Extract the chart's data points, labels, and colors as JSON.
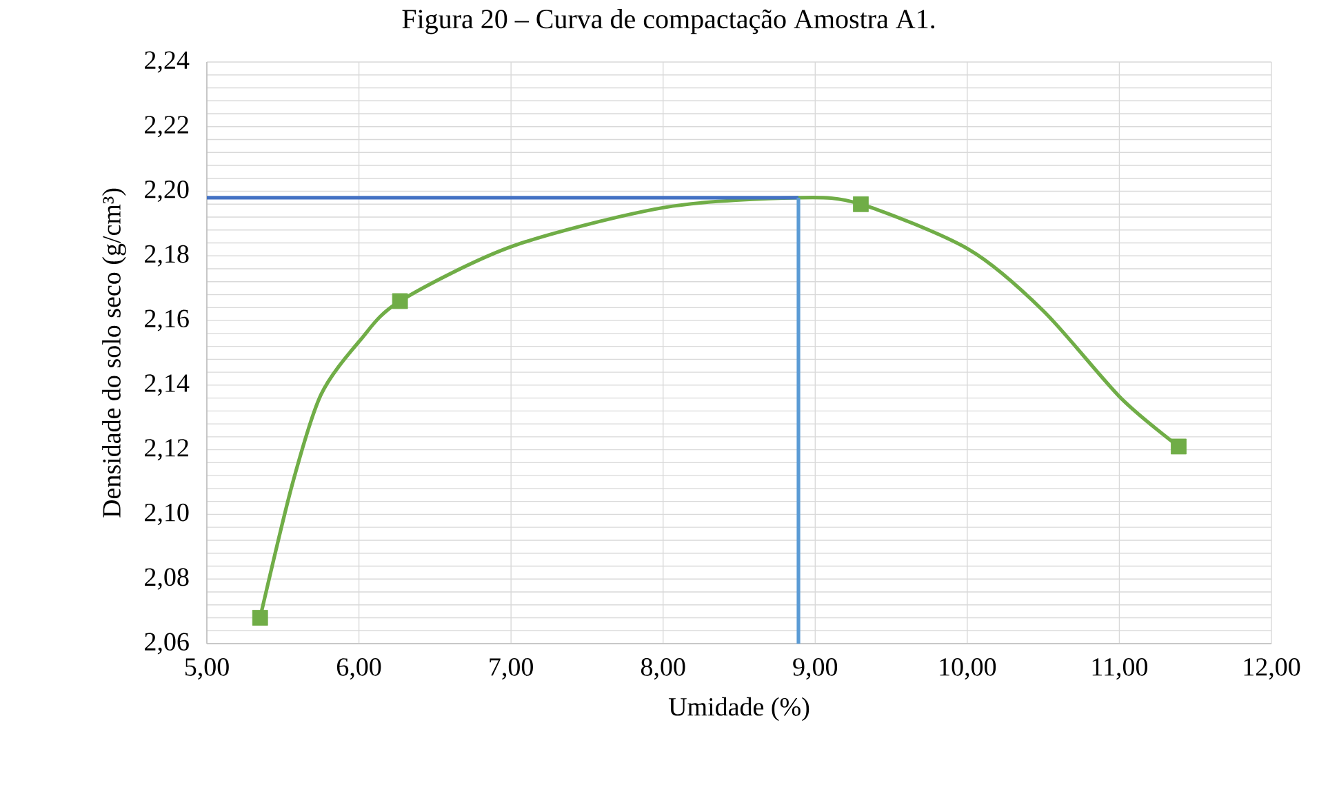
{
  "chart_data": {
    "type": "line",
    "title": "Figura 20 – Curva de compactação Amostra A1.",
    "xlabel": "Umidade (%)",
    "ylabel": "Densidade do solo seco  (g/cm³)",
    "xlim": [
      5,
      12
    ],
    "ylim": [
      2.06,
      2.24
    ],
    "xticks": [
      {
        "value": 5,
        "label": "5,00"
      },
      {
        "value": 6,
        "label": "6,00"
      },
      {
        "value": 7,
        "label": "7,00"
      },
      {
        "value": 8,
        "label": "8,00"
      },
      {
        "value": 9,
        "label": "9,00"
      },
      {
        "value": 10,
        "label": "10,00"
      },
      {
        "value": 11,
        "label": "11,00"
      },
      {
        "value": 12,
        "label": "12,00"
      }
    ],
    "yticks": [
      {
        "value": 2.06,
        "label": "2,06"
      },
      {
        "value": 2.064,
        "label": null
      },
      {
        "value": 2.068,
        "label": null
      },
      {
        "value": 2.072,
        "label": null
      },
      {
        "value": 2.076,
        "label": null
      },
      {
        "value": 2.08,
        "label": "2,08"
      },
      {
        "value": 2.084,
        "label": null
      },
      {
        "value": 2.088,
        "label": null
      },
      {
        "value": 2.092,
        "label": null
      },
      {
        "value": 2.096,
        "label": null
      },
      {
        "value": 2.1,
        "label": "2,10"
      },
      {
        "value": 2.104,
        "label": null
      },
      {
        "value": 2.108,
        "label": null
      },
      {
        "value": 2.112,
        "label": null
      },
      {
        "value": 2.116,
        "label": null
      },
      {
        "value": 2.12,
        "label": "2,12"
      },
      {
        "value": 2.124,
        "label": null
      },
      {
        "value": 2.128,
        "label": null
      },
      {
        "value": 2.132,
        "label": null
      },
      {
        "value": 2.136,
        "label": null
      },
      {
        "value": 2.14,
        "label": "2,14"
      },
      {
        "value": 2.144,
        "label": null
      },
      {
        "value": 2.148,
        "label": null
      },
      {
        "value": 2.152,
        "label": null
      },
      {
        "value": 2.156,
        "label": null
      },
      {
        "value": 2.16,
        "label": "2,16"
      },
      {
        "value": 2.164,
        "label": null
      },
      {
        "value": 2.168,
        "label": null
      },
      {
        "value": 2.172,
        "label": null
      },
      {
        "value": 2.176,
        "label": null
      },
      {
        "value": 2.18,
        "label": "2,18"
      },
      {
        "value": 2.184,
        "label": null
      },
      {
        "value": 2.188,
        "label": null
      },
      {
        "value": 2.192,
        "label": null
      },
      {
        "value": 2.196,
        "label": null
      },
      {
        "value": 2.2,
        "label": "2,20"
      },
      {
        "value": 2.204,
        "label": null
      },
      {
        "value": 2.208,
        "label": null
      },
      {
        "value": 2.212,
        "label": null
      },
      {
        "value": 2.216,
        "label": null
      },
      {
        "value": 2.22,
        "label": "2,22"
      },
      {
        "value": 2.224,
        "label": null
      },
      {
        "value": 2.228,
        "label": null
      },
      {
        "value": 2.232,
        "label": null
      },
      {
        "value": 2.236,
        "label": null
      },
      {
        "value": 2.24,
        "label": "2,24"
      }
    ],
    "grid": true,
    "series": [
      {
        "color": "#70ad47",
        "marker": "none",
        "x": [
          5.35,
          5.56,
          5.75,
          6.01,
          6.27,
          7.01,
          8.01,
          8.89,
          9.3,
          10.01,
          10.5,
          11.01,
          11.39
        ],
        "values": [
          2.068,
          2.109,
          2.137,
          2.154,
          2.166,
          2.183,
          2.195,
          2.198,
          2.196,
          2.182,
          2.163,
          2.136,
          2.121
        ]
      },
      {
        "type": "scatter",
        "color": "#70ad47",
        "marker": "square",
        "x": [
          5.35,
          6.27,
          9.3,
          11.39
        ],
        "values": [
          2.068,
          2.166,
          2.196,
          2.121
        ]
      },
      {
        "type": "line",
        "color": "#4472c4",
        "marker": "none",
        "x": [
          5,
          8.89
        ],
        "values": [
          2.198,
          2.198
        ]
      },
      {
        "type": "line",
        "color": "#5b9bd5",
        "marker": "none",
        "x": [
          8.89,
          8.89
        ],
        "values": [
          2.06,
          2.198
        ]
      }
    ]
  }
}
